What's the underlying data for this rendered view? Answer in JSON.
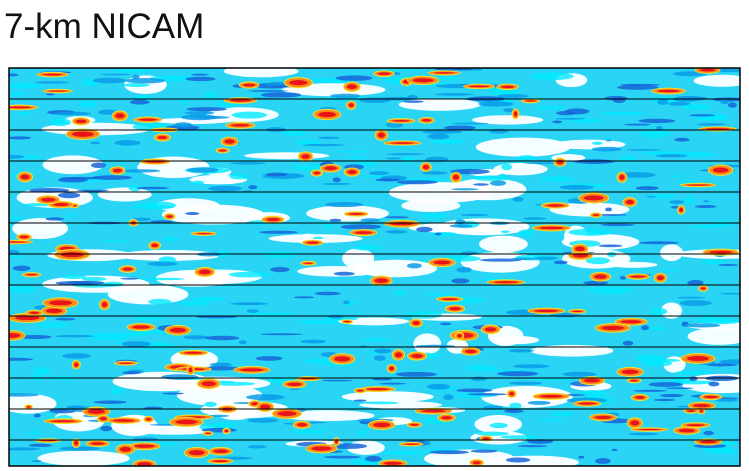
{
  "title": "7-km NICAM"
}
